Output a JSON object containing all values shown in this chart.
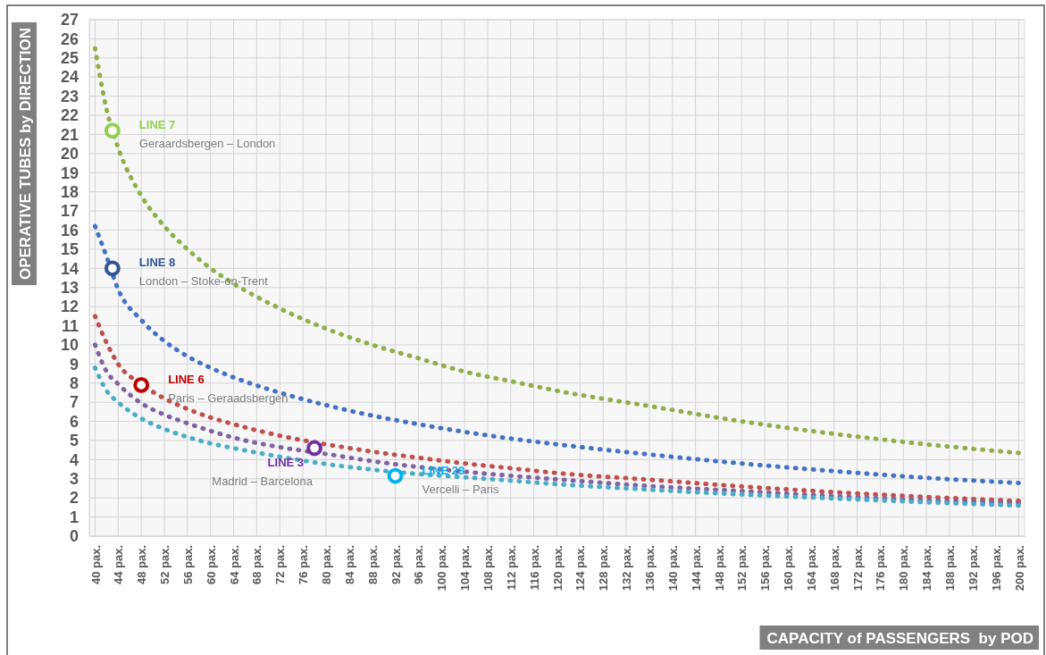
{
  "chart_data": {
    "type": "line",
    "xlabel": "CAPACITY of PASSENGERS  by POD",
    "ylabel": "OPERATIVE TUBES by DIRECTION",
    "x": [
      40,
      42,
      44,
      48,
      52,
      56,
      60,
      64,
      72,
      80,
      88,
      96,
      104,
      112,
      120,
      136,
      152,
      168,
      184,
      200
    ],
    "series": [
      {
        "color": "#8db04a",
        "values": [
          25.5,
          22.3,
          20.3,
          17.8,
          16.2,
          15.0,
          14.0,
          13.2,
          11.9,
          10.85,
          10.0,
          9.3,
          8.6,
          8.1,
          7.6,
          6.8,
          6.0,
          5.35,
          4.8,
          4.35
        ]
      },
      {
        "color": "#4472c4",
        "values": [
          16.2,
          14.6,
          12.9,
          11.3,
          10.2,
          9.4,
          8.8,
          8.3,
          7.5,
          6.85,
          6.3,
          5.85,
          5.45,
          5.1,
          4.8,
          4.27,
          3.8,
          3.4,
          3.05,
          2.78
        ]
      },
      {
        "color": "#c0504d",
        "values": [
          11.5,
          10.1,
          9.0,
          7.95,
          7.2,
          6.65,
          6.2,
          5.85,
          5.25,
          4.8,
          4.42,
          4.1,
          3.8,
          3.55,
          3.3,
          2.95,
          2.6,
          2.3,
          2.05,
          1.84
        ]
      },
      {
        "color": "#8064a2",
        "values": [
          10.0,
          8.6,
          7.95,
          6.95,
          6.35,
          5.9,
          5.5,
          5.15,
          4.65,
          4.3,
          3.92,
          3.62,
          3.37,
          3.16,
          2.97,
          2.62,
          2.36,
          2.09,
          1.88,
          1.73
        ]
      },
      {
        "color": "#4bacc6",
        "values": [
          8.8,
          7.6,
          7.0,
          6.15,
          5.6,
          5.18,
          4.85,
          4.6,
          4.15,
          3.77,
          3.48,
          3.25,
          3.08,
          2.9,
          2.72,
          2.43,
          2.18,
          1.97,
          1.77,
          1.6
        ]
      },
      {
        "type": "scatter",
        "name": "LINE 7",
        "color": "#92d050",
        "marker": "circle",
        "x": [
          43
        ],
        "values": [
          21.2
        ]
      },
      {
        "type": "scatter",
        "name": "LINE 8",
        "color": "#2f5597",
        "marker": "circle",
        "x": [
          43
        ],
        "values": [
          14.0
        ]
      },
      {
        "type": "scatter",
        "name": "LINE 6",
        "color": "#c00000",
        "marker": "circle",
        "x": [
          48
        ],
        "values": [
          7.9
        ]
      },
      {
        "type": "scatter",
        "name": "LINE 3",
        "color": "#7030a0",
        "marker": "circle",
        "x": [
          78
        ],
        "values": [
          4.6
        ]
      },
      {
        "type": "scatter",
        "name": "LINE 28",
        "color": "#00b0f0",
        "marker": "circle",
        "x": [
          92
        ],
        "values": [
          3.15
        ]
      }
    ],
    "annotations": [
      {
        "text": "Geraardsbergen – London",
        "x": 43,
        "y": 21.2
      },
      {
        "text": "London – Stoke-on-Trent",
        "x": 43,
        "y": 14.0
      },
      {
        "text": "Paris – Geraadsbergen",
        "x": 48,
        "y": 7.9
      },
      {
        "text": "Madrid – Barcelona",
        "x": 78,
        "y": 4.6
      },
      {
        "text": "Vercelli – Paris",
        "x": 92,
        "y": 3.15
      }
    ],
    "xlim": [
      39,
      201
    ],
    "ylim": [
      0,
      27
    ],
    "xticks": [
      {
        "value": 40,
        "label": "40 pax."
      },
      {
        "value": 44,
        "label": "44 pax."
      },
      {
        "value": 48,
        "label": "48 pax."
      },
      {
        "value": 52,
        "label": "52 pax."
      },
      {
        "value": 56,
        "label": "56 pax."
      },
      {
        "value": 60,
        "label": "60 pax."
      },
      {
        "value": 64,
        "label": "64 pax."
      },
      {
        "value": 68,
        "label": "68 pax."
      },
      {
        "value": 72,
        "label": "72 pax."
      },
      {
        "value": 76,
        "label": "76 pax."
      },
      {
        "value": 80,
        "label": "80 pax."
      },
      {
        "value": 84,
        "label": "84 pax."
      },
      {
        "value": 88,
        "label": "88 pax."
      },
      {
        "value": 92,
        "label": "92 pax."
      },
      {
        "value": 96,
        "label": "96 pax."
      },
      {
        "value": 100,
        "label": "100 pax."
      },
      {
        "value": 104,
        "label": "104 pax."
      },
      {
        "value": 108,
        "label": "108 pax."
      },
      {
        "value": 112,
        "label": "112 pax."
      },
      {
        "value": 116,
        "label": "116 pax."
      },
      {
        "value": 120,
        "label": "120 pax."
      },
      {
        "value": 124,
        "label": "124 pax."
      },
      {
        "value": 128,
        "label": "128 pax."
      },
      {
        "value": 132,
        "label": "132 pax."
      },
      {
        "value": 136,
        "label": "136 pax."
      },
      {
        "value": 140,
        "label": "140 pax."
      },
      {
        "value": 144,
        "label": "144 pax."
      },
      {
        "value": 148,
        "label": "148 pax."
      },
      {
        "value": 152,
        "label": "152 pax."
      },
      {
        "value": 156,
        "label": "156 pax."
      },
      {
        "value": 160,
        "label": "160 pax."
      },
      {
        "value": 164,
        "label": "164 pax."
      },
      {
        "value": 168,
        "label": "168 pax."
      },
      {
        "value": 172,
        "label": "172 pax."
      },
      {
        "value": 176,
        "label": "176 pax."
      },
      {
        "value": 180,
        "label": "180 pax."
      },
      {
        "value": 184,
        "label": "184 pax."
      },
      {
        "value": 188,
        "label": "188 pax."
      },
      {
        "value": 192,
        "label": "192 pax."
      },
      {
        "value": 196,
        "label": "196 pax."
      },
      {
        "value": 200,
        "label": "200 pax."
      }
    ],
    "yticks": [
      0,
      1,
      2,
      3,
      4,
      5,
      6,
      7,
      8,
      9,
      10,
      11,
      12,
      13,
      14,
      15,
      16,
      17,
      18,
      19,
      20,
      21,
      22,
      23,
      24,
      25,
      26,
      27
    ],
    "grid": true,
    "line_style": "dotted"
  }
}
